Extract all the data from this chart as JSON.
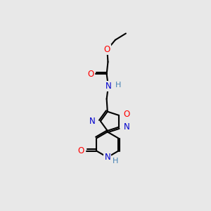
{
  "bg_color": "#e8e8e8",
  "bond_color": "#000000",
  "bond_width": 1.5,
  "atom_colors": {
    "O": "#ff0000",
    "N": "#0000cd",
    "H": "#4682b4",
    "C": "#000000"
  },
  "font_size": 8.5
}
